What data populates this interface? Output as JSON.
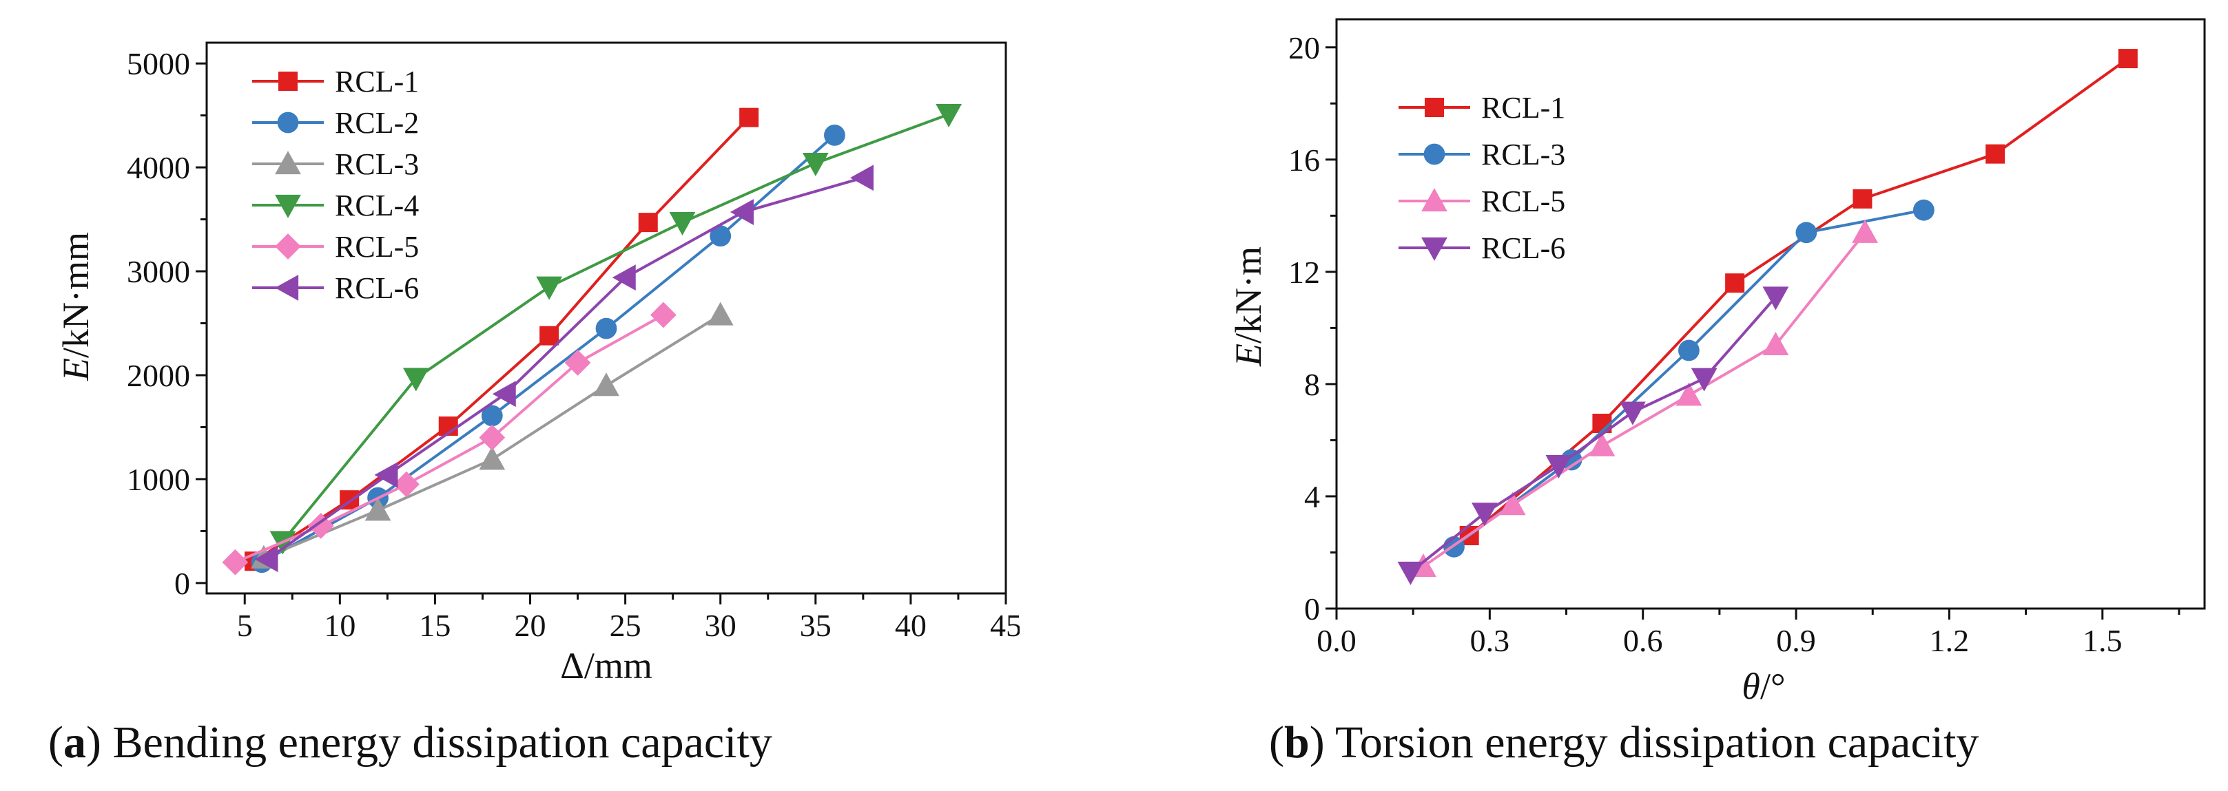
{
  "chart_data": [
    {
      "type": "line",
      "caption_letter": "a",
      "caption_text": ") Bending energy dissipation capacity",
      "ylabel_italic": "E",
      "ylabel_unit": "/kN·mm",
      "xlabel": "Δ/mm",
      "xlim": [
        3,
        45
      ],
      "ylim": [
        -100,
        5200
      ],
      "xticks": [
        "5",
        "10",
        "15",
        "20",
        "25",
        "30",
        "35",
        "40",
        "45"
      ],
      "yticks": [
        "0",
        "1000",
        "2000",
        "3000",
        "4000",
        "5000"
      ],
      "legend_position": "top-left",
      "series": [
        {
          "name": "RCL-1",
          "color": "#e0201f",
          "marker": "square",
          "x": [
            5.5,
            10.5,
            15.7,
            21.0,
            26.2,
            31.5
          ],
          "y": [
            210,
            800,
            1510,
            2380,
            3470,
            4480
          ]
        },
        {
          "name": "RCL-2",
          "color": "#3a7dc0",
          "marker": "circle",
          "x": [
            5.9,
            12.0,
            18.0,
            24.0,
            30.0,
            36.0
          ],
          "y": [
            200,
            820,
            1610,
            2450,
            3340,
            4310
          ]
        },
        {
          "name": "RCL-3",
          "color": "#999999",
          "marker": "triangle-up",
          "x": [
            6.0,
            12.0,
            18.0,
            24.0,
            30.0
          ],
          "y": [
            240,
            700,
            1190,
            1900,
            2580
          ]
        },
        {
          "name": "RCL-4",
          "color": "#3f9a44",
          "marker": "triangle-down",
          "x": [
            7.0,
            14.0,
            21.0,
            28.0,
            35.0,
            42.0
          ],
          "y": [
            400,
            1970,
            2850,
            3470,
            4040,
            4510
          ]
        },
        {
          "name": "RCL-5",
          "color": "#f27fbf",
          "marker": "diamond",
          "x": [
            4.5,
            9.0,
            13.5,
            18.0,
            22.5,
            27.0
          ],
          "y": [
            200,
            550,
            950,
            1400,
            2120,
            2580
          ]
        },
        {
          "name": "RCL-6",
          "color": "#8e44ad",
          "marker": "triangle-left",
          "x": [
            6.2,
            12.5,
            18.7,
            25.0,
            31.2,
            37.5
          ],
          "y": [
            230,
            1040,
            1820,
            2940,
            3570,
            3900
          ]
        }
      ]
    },
    {
      "type": "line",
      "caption_letter": "b",
      "caption_text": ") Torsion energy dissipation capacity",
      "ylabel_italic": "E",
      "ylabel_unit": "/kN·m",
      "xlabel_italic": "θ",
      "xlabel_unit": "/°",
      "xlim": [
        0,
        1.7
      ],
      "ylim": [
        0,
        21
      ],
      "xticks": [
        "0.0",
        "0.3",
        "0.6",
        "0.9",
        "1.2",
        "1.5"
      ],
      "yticks": [
        "0",
        "4",
        "8",
        "12",
        "16",
        "20"
      ],
      "legend_position": "top-left",
      "series": [
        {
          "name": "RCL-1",
          "color": "#e0201f",
          "marker": "square",
          "x": [
            0.26,
            0.52,
            0.78,
            1.03,
            1.29,
            1.55
          ],
          "y": [
            2.6,
            6.6,
            11.6,
            14.6,
            16.2,
            19.6
          ]
        },
        {
          "name": "RCL-3",
          "color": "#3a7dc0",
          "marker": "circle",
          "x": [
            0.23,
            0.46,
            0.69,
            0.92,
            1.15
          ],
          "y": [
            2.2,
            5.3,
            9.2,
            13.4,
            14.2
          ]
        },
        {
          "name": "RCL-5",
          "color": "#f27fbf",
          "marker": "triangle-up",
          "x": [
            0.17,
            0.345,
            0.52,
            0.69,
            0.86,
            1.035
          ],
          "y": [
            1.5,
            3.7,
            5.8,
            7.6,
            9.4,
            13.4
          ]
        },
        {
          "name": "RCL-6",
          "color": "#8e44ad",
          "marker": "triangle-down",
          "x": [
            0.145,
            0.29,
            0.435,
            0.58,
            0.72,
            0.86
          ],
          "y": [
            1.3,
            3.4,
            5.1,
            7.0,
            8.2,
            11.1
          ]
        }
      ]
    }
  ]
}
